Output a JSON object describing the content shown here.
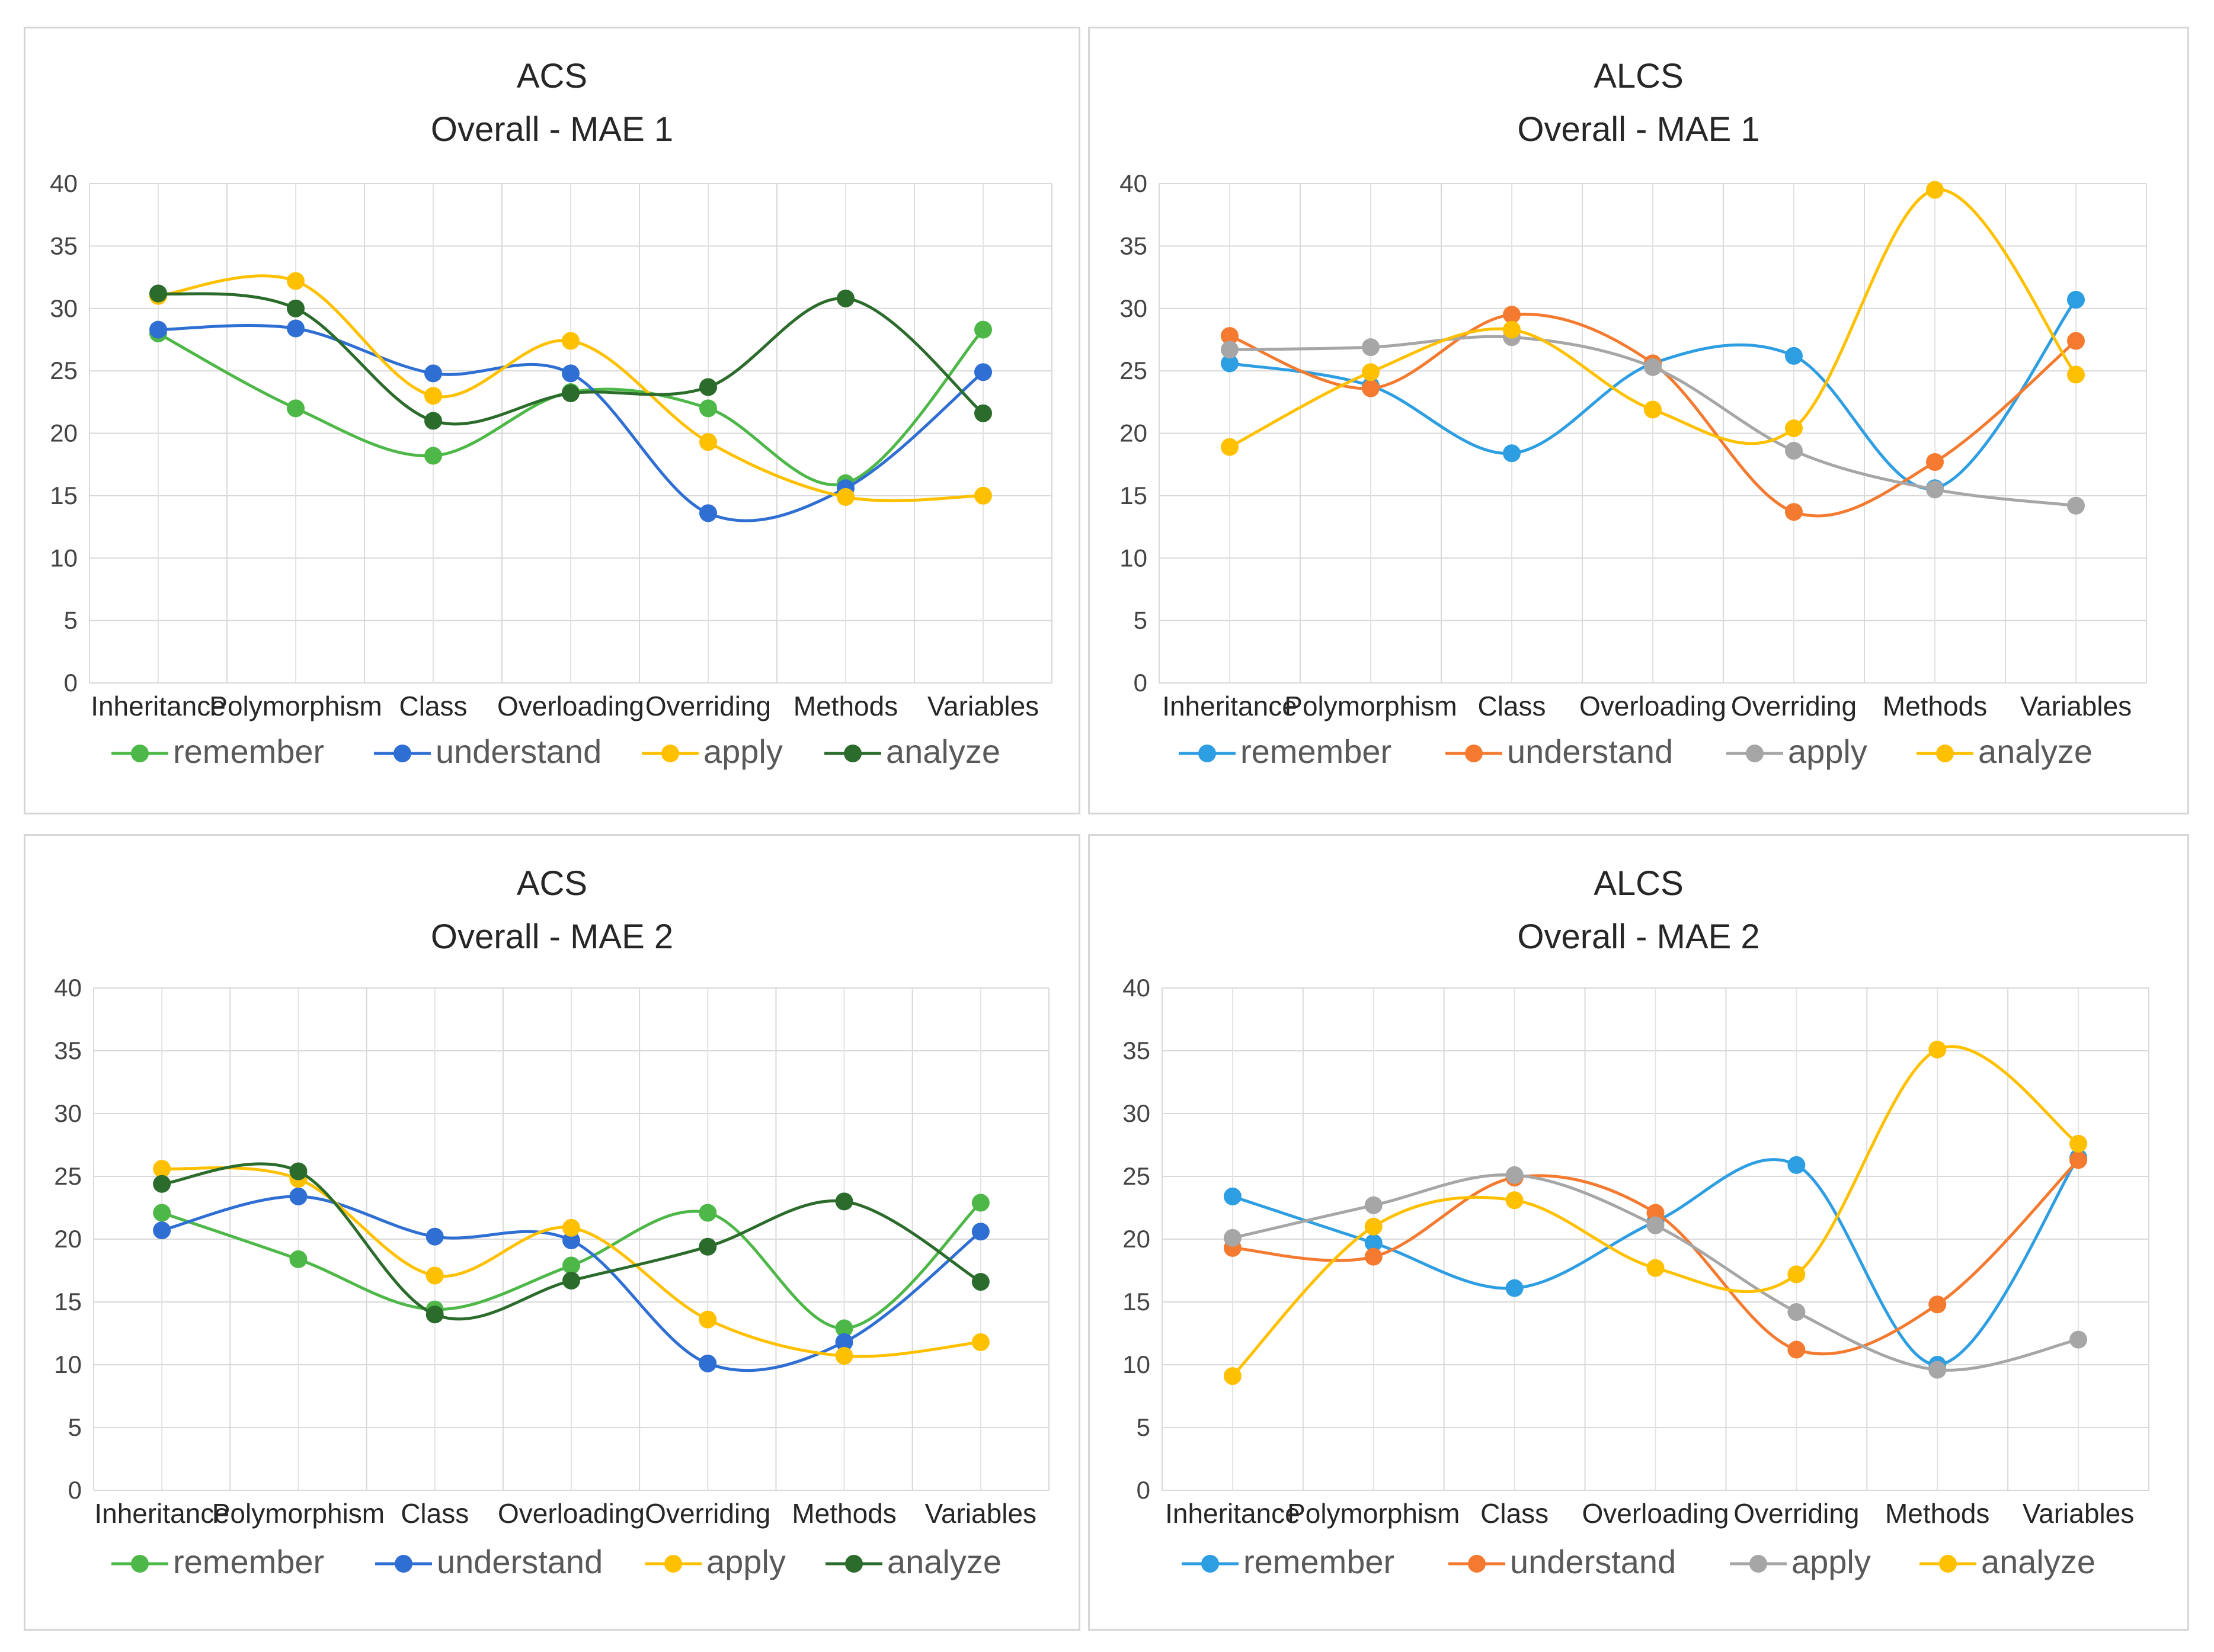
{
  "chart_data": [
    {
      "type": "line",
      "title_line1": "ACS",
      "title_line2": "Overall - MAE 1",
      "categories": [
        "Inheritance",
        "Polymorphism",
        "Class",
        "Overloading",
        "Overriding",
        "Methods",
        "Variables"
      ],
      "ylim": [
        0,
        40
      ],
      "y_ticks": [
        "0",
        "5",
        "10",
        "15",
        "20",
        "25",
        "30",
        "35",
        "40"
      ],
      "grid": true,
      "smooth": true,
      "legend_position": "bottom",
      "series": [
        {
          "name": "remember",
          "color": "#4db848",
          "values": [
            28.0,
            22.0,
            18.2,
            23.3,
            22.0,
            16.0,
            28.3
          ]
        },
        {
          "name": "understand",
          "color": "#2f6fd3",
          "values": [
            28.3,
            28.4,
            24.8,
            24.8,
            13.6,
            15.6,
            24.9
          ]
        },
        {
          "name": "apply",
          "color": "#ffc000",
          "values": [
            31.0,
            32.2,
            23.0,
            27.4,
            19.3,
            14.9,
            15.0
          ]
        },
        {
          "name": "analyze",
          "color": "#2b6b2b",
          "values": [
            31.2,
            30.0,
            21.0,
            23.2,
            23.7,
            30.8,
            21.6
          ]
        }
      ]
    },
    {
      "type": "line",
      "title_line1": "ALCS",
      "title_line2": "Overall - MAE 1",
      "categories": [
        "Inheritance",
        "Polymorphism",
        "Class",
        "Overloading",
        "Overriding",
        "Methods",
        "Variables"
      ],
      "ylim": [
        0,
        40
      ],
      "y_ticks": [
        "0",
        "5",
        "10",
        "15",
        "20",
        "25",
        "30",
        "35",
        "40"
      ],
      "grid": true,
      "smooth": true,
      "legend_position": "bottom",
      "series": [
        {
          "name": "remember",
          "color": "#2e9ee2",
          "values": [
            25.6,
            23.8,
            18.4,
            25.6,
            26.2,
            15.6,
            30.7
          ]
        },
        {
          "name": "understand",
          "color": "#f47a30",
          "values": [
            27.8,
            23.6,
            29.5,
            25.6,
            13.7,
            17.7,
            27.4
          ]
        },
        {
          "name": "apply",
          "color": "#a6a6a6",
          "values": [
            26.7,
            26.9,
            27.7,
            25.3,
            18.6,
            15.5,
            14.2
          ]
        },
        {
          "name": "analyze",
          "color": "#ffc000",
          "values": [
            18.9,
            24.9,
            28.3,
            21.9,
            20.4,
            39.5,
            24.7
          ]
        }
      ]
    },
    {
      "type": "line",
      "title_line1": "ACS",
      "title_line2": "Overall - MAE 2",
      "categories": [
        "Inheritance",
        "Polymorphism",
        "Class",
        "Overloading",
        "Overriding",
        "Methods",
        "Variables"
      ],
      "ylim": [
        0,
        40
      ],
      "y_ticks": [
        "0",
        "5",
        "10",
        "15",
        "20",
        "25",
        "30",
        "35",
        "40"
      ],
      "grid": true,
      "smooth": true,
      "legend_position": "bottom",
      "series": [
        {
          "name": "remember",
          "color": "#4db848",
          "values": [
            22.1,
            18.4,
            14.4,
            17.9,
            22.1,
            12.9,
            22.9
          ]
        },
        {
          "name": "understand",
          "color": "#2f6fd3",
          "values": [
            20.7,
            23.4,
            20.2,
            19.9,
            10.1,
            11.8,
            20.6
          ]
        },
        {
          "name": "apply",
          "color": "#ffc000",
          "values": [
            25.6,
            24.8,
            17.1,
            20.9,
            13.6,
            10.7,
            11.8
          ]
        },
        {
          "name": "analyze",
          "color": "#2b6b2b",
          "values": [
            24.4,
            25.4,
            14.0,
            16.7,
            19.4,
            23.0,
            16.6
          ]
        }
      ]
    },
    {
      "type": "line",
      "title_line1": "ALCS",
      "title_line2": "Overall - MAE 2",
      "categories": [
        "Inheritance",
        "Polymorphism",
        "Class",
        "Overloading",
        "Overriding",
        "Methods",
        "Variables"
      ],
      "ylim": [
        0,
        40
      ],
      "y_ticks": [
        "0",
        "5",
        "10",
        "15",
        "20",
        "25",
        "30",
        "35",
        "40"
      ],
      "grid": true,
      "smooth": true,
      "legend_position": "bottom",
      "series": [
        {
          "name": "remember",
          "color": "#2e9ee2",
          "values": [
            23.4,
            19.7,
            16.1,
            21.4,
            25.9,
            10.0,
            26.5
          ]
        },
        {
          "name": "understand",
          "color": "#f47a30",
          "values": [
            19.3,
            18.6,
            24.9,
            22.1,
            11.2,
            14.8,
            26.3
          ]
        },
        {
          "name": "apply",
          "color": "#a6a6a6",
          "values": [
            20.1,
            22.7,
            25.1,
            21.1,
            14.2,
            9.6,
            12.0
          ]
        },
        {
          "name": "analyze",
          "color": "#ffc000",
          "values": [
            9.1,
            21.0,
            23.1,
            17.7,
            17.2,
            35.1,
            27.6
          ]
        }
      ]
    }
  ]
}
